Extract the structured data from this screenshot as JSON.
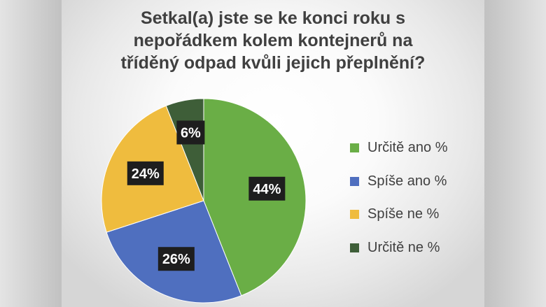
{
  "chart_data": {
    "type": "pie",
    "title_lines": [
      "Setkal(a) jste se ke konci roku s",
      "nepořádkem kolem kontejnerů na",
      "tříděný odpad kvůli jejich přeplnění?"
    ],
    "slices": [
      {
        "label": "Určitě ano %",
        "value": 44,
        "data_label": "44%",
        "color": "#6aae46"
      },
      {
        "label": "Spíše ano %",
        "value": 26,
        "data_label": "26%",
        "color": "#4f6fbf"
      },
      {
        "label": "Spíše ne %",
        "value": 24,
        "data_label": "24%",
        "color": "#efbc3e"
      },
      {
        "label": "Určitě ne %",
        "value": 6,
        "data_label": "6%",
        "color": "#3e5e38"
      }
    ],
    "legend_position": "right",
    "data_label_style": {
      "background": "#1e1e1e",
      "color": "#ffffff"
    }
  }
}
